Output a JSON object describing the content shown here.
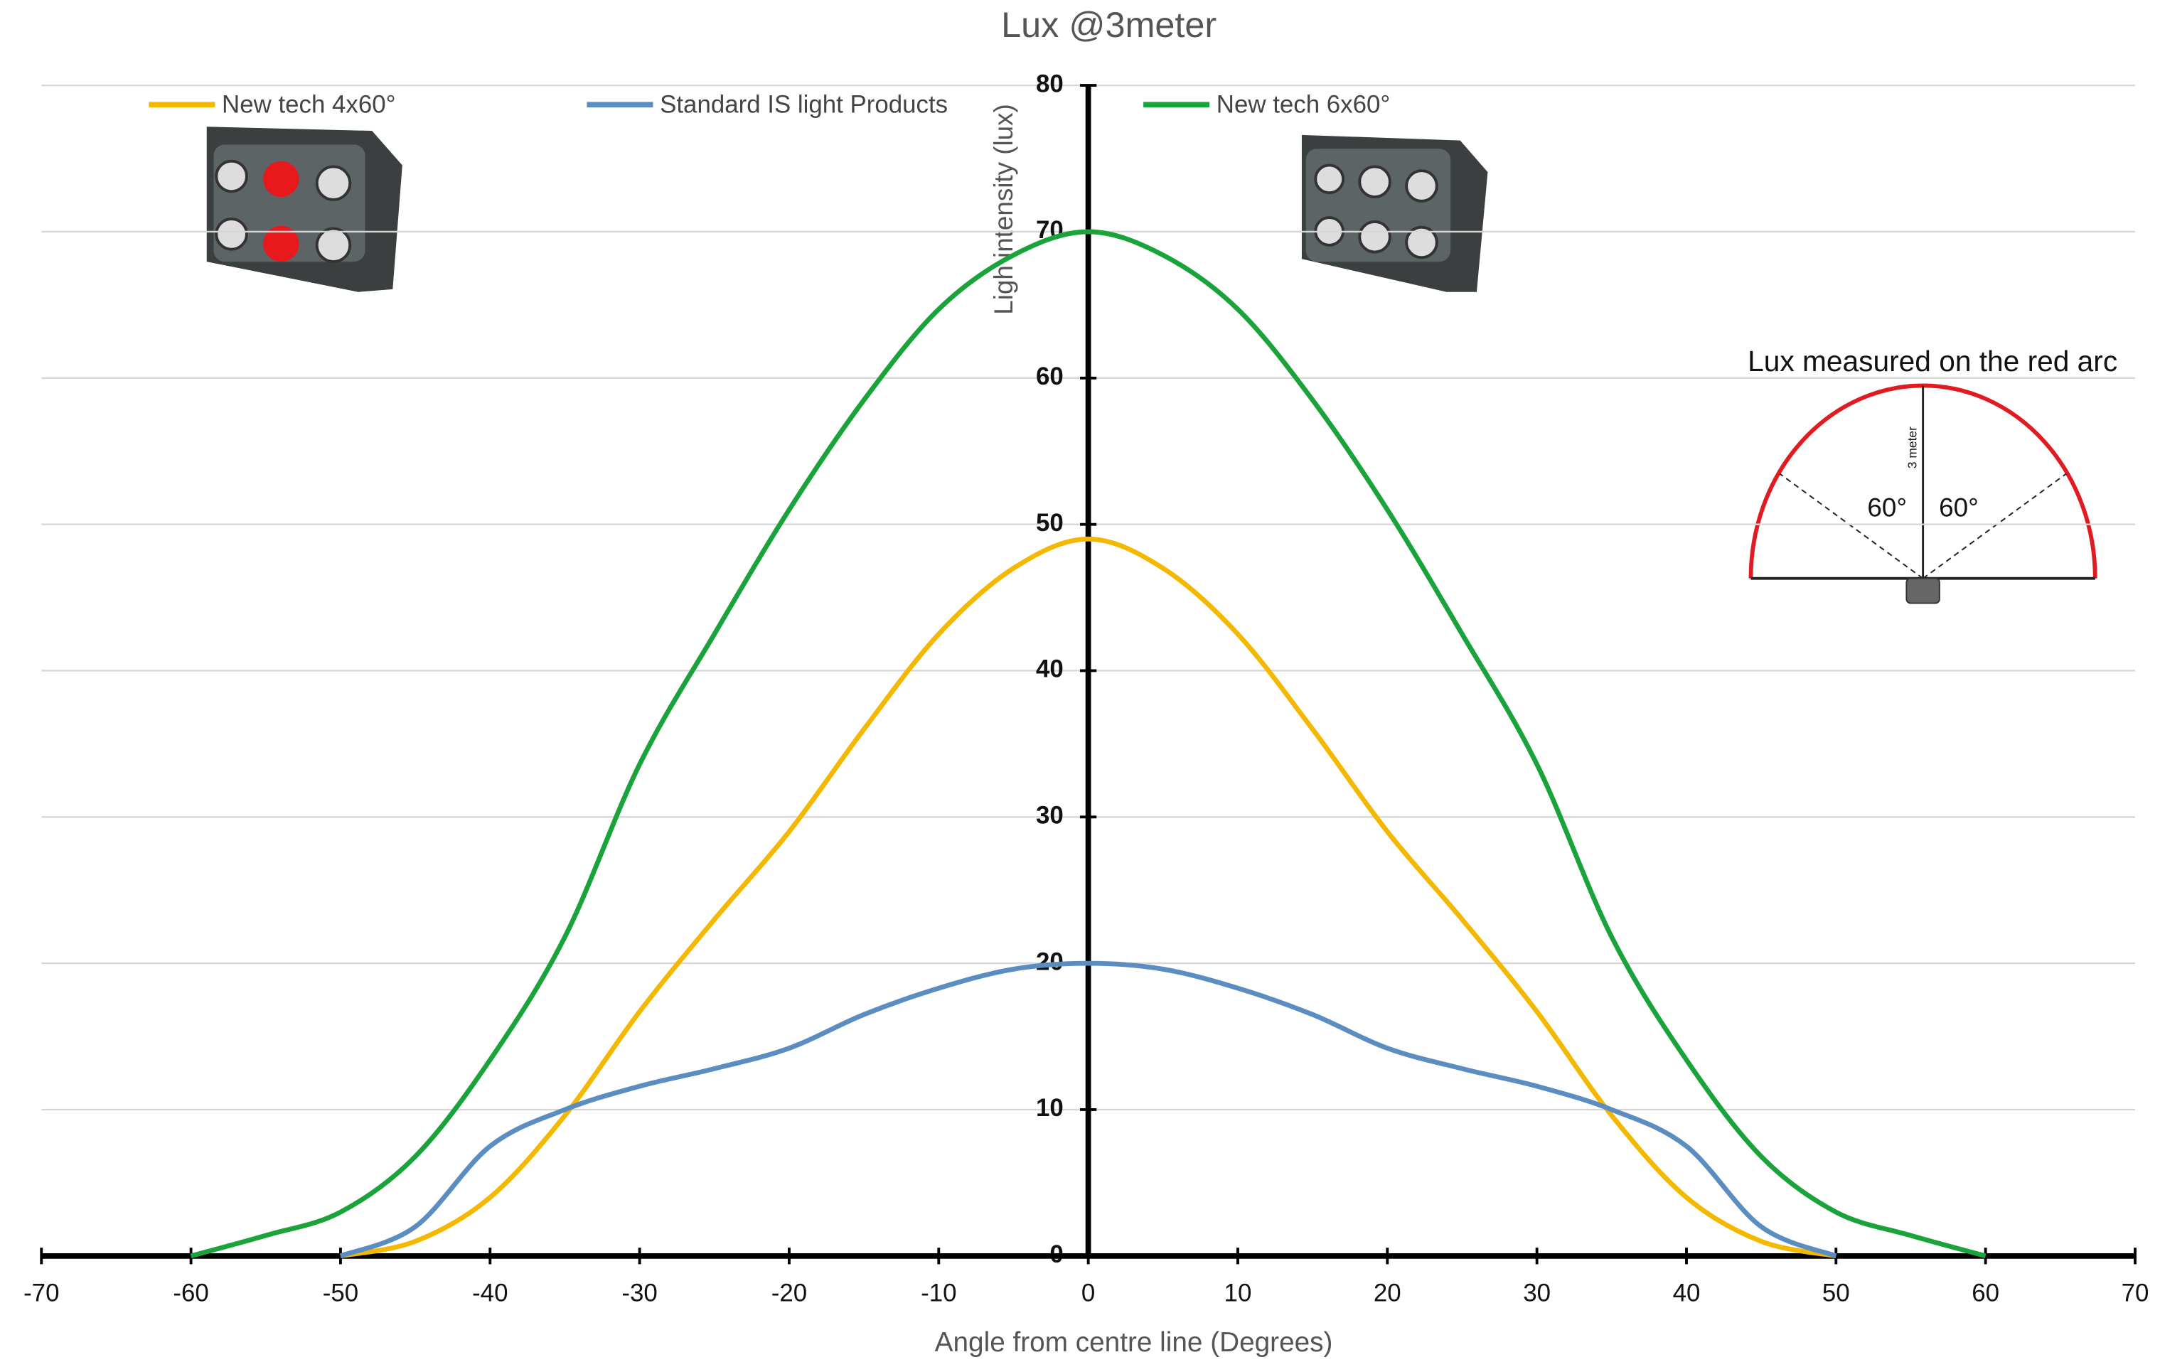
{
  "chart_data": {
    "type": "line",
    "title": "Lux @3meter",
    "x_label": "Angle from centre line (Degrees)",
    "y_label": "Ligh intensity (lux)",
    "x": [
      -60,
      -55,
      -50,
      -45,
      -40,
      -35,
      -30,
      -25,
      -20,
      -15,
      -10,
      -5,
      0,
      5,
      10,
      15,
      20,
      25,
      30,
      35,
      40,
      45,
      50,
      55,
      60
    ],
    "series": [
      {
        "name": "New tech 4x60°",
        "color": "#f5b800",
        "values": [
          null,
          null,
          0,
          1,
          4,
          9.6,
          16.7,
          23,
          29,
          36,
          42.5,
          47,
          49,
          47,
          42.5,
          36,
          29,
          23,
          16.7,
          9.6,
          4,
          1,
          0,
          null,
          null
        ]
      },
      {
        "name": "Standard IS light Products",
        "color": "#5b8dc0",
        "values": [
          null,
          null,
          0,
          2,
          7.5,
          10,
          11.6,
          12.8,
          14.2,
          16.5,
          18.3,
          19.6,
          20,
          19.6,
          18.3,
          16.5,
          14.2,
          12.8,
          11.6,
          10,
          7.5,
          2,
          0,
          null,
          null
        ]
      },
      {
        "name": "New tech 6x60°",
        "color": "#1aa33a",
        "values": [
          0,
          1.4,
          3,
          6.8,
          13.4,
          21.8,
          33.6,
          42.5,
          51,
          58.5,
          64.7,
          68.4,
          70,
          68.4,
          64.7,
          58.5,
          51,
          42.5,
          33.6,
          21.8,
          13.4,
          6.8,
          3,
          1.4,
          0
        ]
      }
    ],
    "xlim": [
      -70,
      70
    ],
    "xticks": [
      -70,
      -60,
      -50,
      -40,
      -30,
      -20,
      -10,
      0,
      10,
      20,
      30,
      40,
      50,
      60,
      70
    ],
    "ylim": [
      0,
      80
    ],
    "yticks": [
      0,
      10,
      20,
      30,
      40,
      50,
      60,
      70,
      80
    ],
    "grid": true,
    "annotations": [
      "Lux measured on the red arc",
      "60°",
      "60°",
      "3 meter"
    ]
  }
}
